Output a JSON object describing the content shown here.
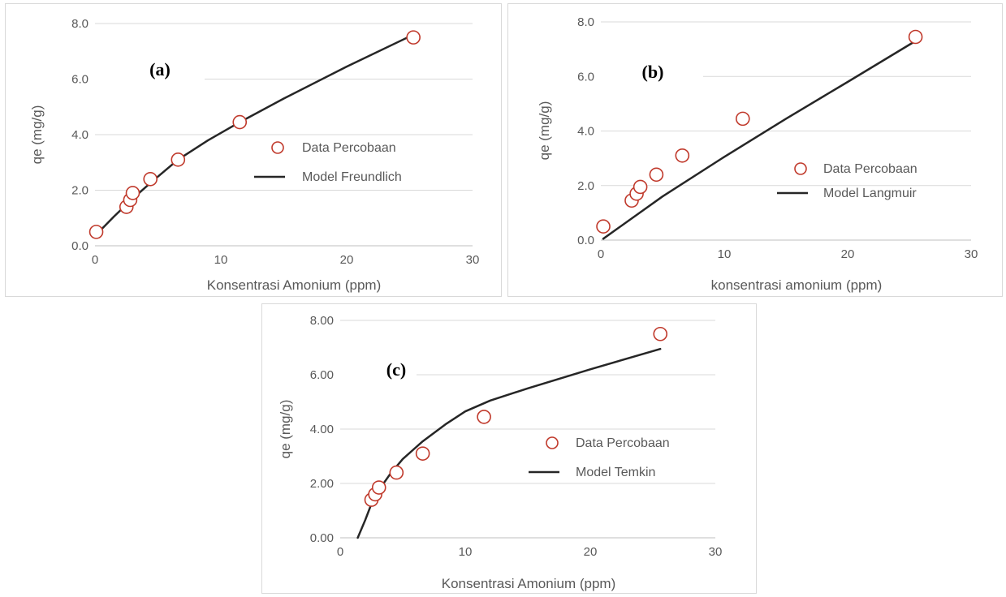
{
  "chart_data": [
    {
      "type": "scatter",
      "panel_label": "(a)",
      "xlabel": "Konsentrasi Amonium (ppm)",
      "ylabel": "qe (mg/g)",
      "xlim": [
        0,
        30
      ],
      "ylim": [
        0,
        8
      ],
      "x_ticks": [
        "0",
        "10",
        "20",
        "30"
      ],
      "y_ticks": [
        "0.0",
        "2.0",
        "4.0",
        "6.0",
        "8.0"
      ],
      "grid": true,
      "legend_position": "center-right",
      "series": [
        {
          "name": "Data Percobaan",
          "kind": "marker",
          "color": "#c0392b",
          "points": [
            [
              0.1,
              0.5
            ],
            [
              2.5,
              1.4
            ],
            [
              2.8,
              1.65
            ],
            [
              3.0,
              1.9
            ],
            [
              4.4,
              2.4
            ],
            [
              6.6,
              3.1
            ],
            [
              11.5,
              4.45
            ],
            [
              25.3,
              7.5
            ]
          ]
        },
        {
          "name": "Model Freundlich",
          "kind": "line",
          "color": "#262626",
          "points": [
            [
              0.1,
              0.4
            ],
            [
              1.5,
              1.05
            ],
            [
              3.0,
              1.7
            ],
            [
              4.5,
              2.3
            ],
            [
              6.6,
              3.1
            ],
            [
              9.0,
              3.8
            ],
            [
              11.5,
              4.45
            ],
            [
              15.0,
              5.3
            ],
            [
              20.0,
              6.45
            ],
            [
              25.3,
              7.6
            ]
          ]
        }
      ]
    },
    {
      "type": "scatter",
      "panel_label": "(b)",
      "xlabel": "konsentrasi amonium (ppm)",
      "ylabel": "qe (mg/g)",
      "xlim": [
        0,
        30
      ],
      "ylim": [
        0,
        8
      ],
      "x_ticks": [
        "0",
        "10",
        "20",
        "30"
      ],
      "y_ticks": [
        "0.0",
        "2.0",
        "4.0",
        "6.0",
        "8.0"
      ],
      "grid": true,
      "legend_position": "center-right",
      "series": [
        {
          "name": "Data Percobaan",
          "kind": "marker",
          "color": "#c0392b",
          "points": [
            [
              0.2,
              0.5
            ],
            [
              2.5,
              1.45
            ],
            [
              2.9,
              1.7
            ],
            [
              3.2,
              1.95
            ],
            [
              4.5,
              2.4
            ],
            [
              6.6,
              3.1
            ],
            [
              11.5,
              4.45
            ],
            [
              25.5,
              7.45
            ]
          ]
        },
        {
          "name": "Model Langmuir",
          "kind": "line",
          "color": "#262626",
          "points": [
            [
              0.2,
              0.05
            ],
            [
              5.0,
              1.6
            ],
            [
              10.0,
              3.05
            ],
            [
              15.0,
              4.45
            ],
            [
              20.0,
              5.8
            ],
            [
              25.5,
              7.3
            ]
          ]
        }
      ]
    },
    {
      "type": "scatter",
      "panel_label": "(c)",
      "xlabel": "Konsentrasi Amonium (ppm)",
      "ylabel": "qe (mg/g)",
      "xlim": [
        0,
        30
      ],
      "ylim": [
        0,
        8
      ],
      "x_ticks": [
        "0",
        "10",
        "20",
        "30"
      ],
      "y_ticks": [
        "0.00",
        "2.00",
        "4.00",
        "6.00",
        "8.00"
      ],
      "grid": true,
      "legend_position": "center-right",
      "series": [
        {
          "name": "Data Percobaan",
          "kind": "marker",
          "color": "#c0392b",
          "points": [
            [
              2.5,
              1.4
            ],
            [
              2.8,
              1.6
            ],
            [
              3.1,
              1.85
            ],
            [
              4.5,
              2.4
            ],
            [
              6.6,
              3.1
            ],
            [
              11.5,
              4.45
            ],
            [
              25.6,
              7.5
            ]
          ]
        },
        {
          "name": "Model Temkin",
          "kind": "line",
          "color": "#262626",
          "points": [
            [
              1.4,
              0.0
            ],
            [
              2.0,
              0.65
            ],
            [
              2.5,
              1.25
            ],
            [
              3.0,
              1.7
            ],
            [
              4.0,
              2.35
            ],
            [
              5.0,
              2.9
            ],
            [
              6.6,
              3.55
            ],
            [
              8.5,
              4.2
            ],
            [
              10.0,
              4.65
            ],
            [
              12.0,
              5.05
            ],
            [
              15.0,
              5.5
            ],
            [
              20.0,
              6.2
            ],
            [
              25.6,
              6.95
            ]
          ]
        }
      ]
    }
  ]
}
